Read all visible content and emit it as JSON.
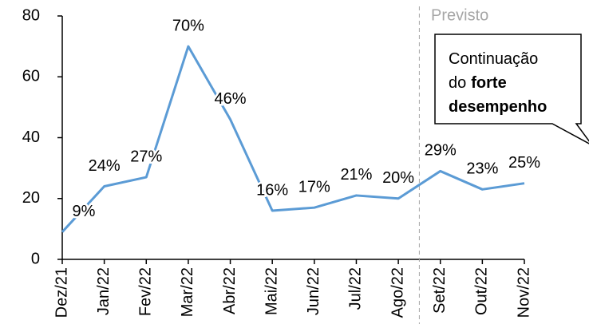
{
  "chart_data": {
    "type": "line",
    "categories": [
      "Dez/21",
      "Jan/22",
      "Fev/22",
      "Mar/22",
      "Abr/22",
      "Mai/22",
      "Jun/22",
      "Jul/22",
      "Ago/22",
      "Set/22",
      "Out/22",
      "Nov/22"
    ],
    "series": [
      {
        "color": "#5b9bd5",
        "values": [
          9,
          24,
          27,
          70,
          46,
          16,
          17,
          21,
          20,
          29,
          23,
          25
        ],
        "value_labels": [
          "9%",
          "24%",
          "27%",
          "70%",
          "46%",
          "16%",
          "17%",
          "21%",
          "20%",
          "29%",
          "23%",
          "25%"
        ]
      }
    ],
    "ylim": [
      0,
      80
    ],
    "yticks": [
      0,
      20,
      40,
      60,
      80
    ],
    "grid": false,
    "forecast_label": "Previsto",
    "callout": [
      {
        "text": "Continuação",
        "bold": false
      },
      {
        "text": "do",
        "bold": false
      },
      {
        "text": "forte",
        "bold": true
      },
      {
        "text": "desempenho",
        "bold": true
      }
    ]
  }
}
